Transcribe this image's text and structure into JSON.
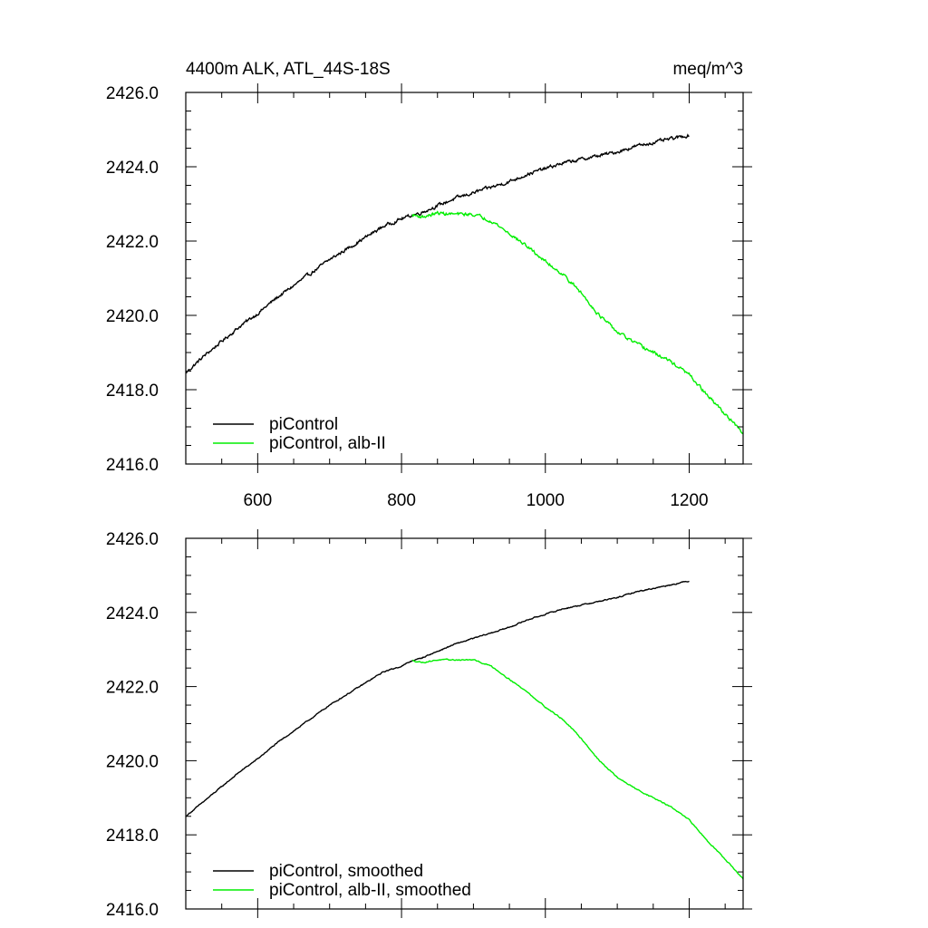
{
  "chart_data": [
    {
      "type": "line",
      "title_left": "4400m ALK, ATL_44S-18S",
      "title_right": "meq/m^3",
      "xlim": [
        500,
        1275
      ],
      "ylim": [
        2416.0,
        2426.0
      ],
      "x_ticks": [
        600,
        800,
        1000,
        1200
      ],
      "x_tick_labels": [
        "600",
        "800",
        "1000",
        "1200"
      ],
      "y_ticks": [
        2416,
        2418,
        2420,
        2422,
        2424,
        2426
      ],
      "y_tick_labels": [
        "2416.0",
        "2418.0",
        "2420.0",
        "2422.0",
        "2424.0",
        "2426.0"
      ],
      "grid": false,
      "legend_position": "bottom-left",
      "series": [
        {
          "name": "piControl",
          "color": "#000000",
          "x": [
            500,
            525,
            550,
            575,
            600,
            625,
            650,
            675,
            700,
            725,
            750,
            775,
            800,
            815,
            825,
            850,
            875,
            900,
            925,
            950,
            975,
            1000,
            1025,
            1050,
            1075,
            1100,
            1125,
            1150,
            1175,
            1200
          ],
          "y": [
            2418.45,
            2418.9,
            2419.3,
            2419.7,
            2420.05,
            2420.45,
            2420.8,
            2421.15,
            2421.5,
            2421.8,
            2422.1,
            2422.4,
            2422.6,
            2422.7,
            2422.75,
            2422.95,
            2423.15,
            2423.3,
            2423.45,
            2423.6,
            2423.8,
            2423.95,
            2424.1,
            2424.2,
            2424.3,
            2424.4,
            2424.55,
            2424.65,
            2424.75,
            2424.85
          ],
          "noise": 0.035
        },
        {
          "name": "piControl, alb-II",
          "color": "#00ee00",
          "x": [
            815,
            830,
            850,
            875,
            900,
            925,
            950,
            975,
            1000,
            1025,
            1050,
            1075,
            1100,
            1125,
            1150,
            1175,
            1200,
            1225,
            1250,
            1275
          ],
          "y": [
            2422.7,
            2422.65,
            2422.75,
            2422.72,
            2422.72,
            2422.55,
            2422.2,
            2421.85,
            2421.45,
            2421.1,
            2420.6,
            2420.0,
            2419.55,
            2419.25,
            2419.0,
            2418.75,
            2418.4,
            2417.85,
            2417.35,
            2416.8
          ],
          "noise": 0.035
        }
      ]
    },
    {
      "type": "line",
      "xlim": [
        500,
        1275
      ],
      "ylim": [
        2416.0,
        2426.0
      ],
      "x_ticks": [
        600,
        800,
        1000,
        1200
      ],
      "y_ticks": [
        2416,
        2418,
        2420,
        2422,
        2424,
        2426
      ],
      "y_tick_labels": [
        "2416.0",
        "2418.0",
        "2420.0",
        "2422.0",
        "2424.0",
        "2426.0"
      ],
      "grid": false,
      "legend_position": "bottom-left",
      "series": [
        {
          "name": "piControl, smoothed",
          "color": "#000000",
          "x": [
            500,
            525,
            550,
            575,
            600,
            625,
            650,
            675,
            700,
            725,
            750,
            775,
            800,
            815,
            825,
            850,
            875,
            900,
            925,
            950,
            975,
            1000,
            1025,
            1050,
            1075,
            1100,
            1125,
            1150,
            1175,
            1200
          ],
          "y": [
            2418.5,
            2418.9,
            2419.3,
            2419.7,
            2420.05,
            2420.45,
            2420.8,
            2421.15,
            2421.5,
            2421.8,
            2422.1,
            2422.4,
            2422.55,
            2422.7,
            2422.75,
            2422.95,
            2423.15,
            2423.3,
            2423.45,
            2423.6,
            2423.8,
            2423.95,
            2424.1,
            2424.2,
            2424.3,
            2424.4,
            2424.55,
            2424.65,
            2424.75,
            2424.85
          ],
          "noise": 0.012
        },
        {
          "name": "piControl, alb-II, smoothed",
          "color": "#00ee00",
          "x": [
            815,
            830,
            850,
            875,
            900,
            925,
            950,
            975,
            1000,
            1025,
            1050,
            1075,
            1100,
            1125,
            1150,
            1175,
            1200,
            1225,
            1250,
            1275
          ],
          "y": [
            2422.7,
            2422.65,
            2422.72,
            2422.72,
            2422.72,
            2422.55,
            2422.2,
            2421.85,
            2421.45,
            2421.1,
            2420.6,
            2420.0,
            2419.55,
            2419.25,
            2419.0,
            2418.75,
            2418.4,
            2417.85,
            2417.35,
            2416.8
          ],
          "noise": 0.012
        }
      ]
    }
  ]
}
